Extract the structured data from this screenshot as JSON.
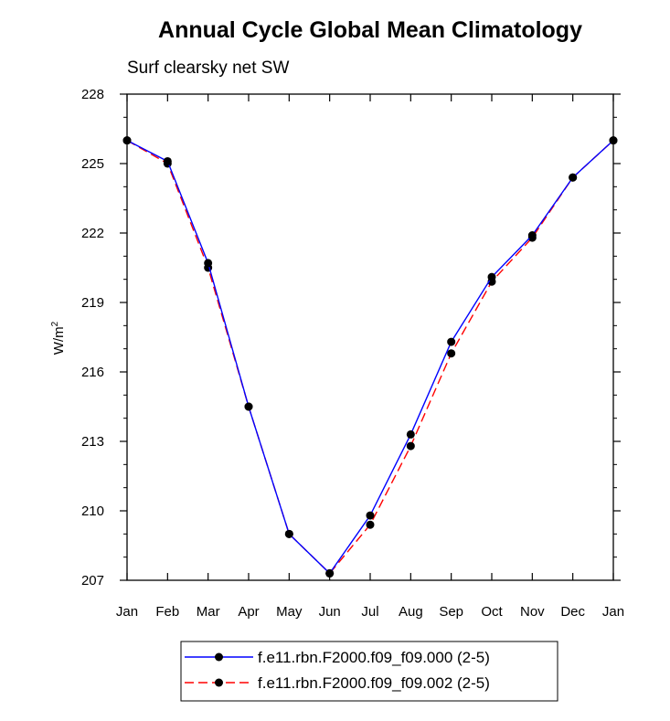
{
  "chart_data": {
    "type": "line",
    "title": "Annual Cycle Global Mean Climatology",
    "subtitle": "Surf clearsky net SW",
    "ylabel": "W/m",
    "ylabel_superscript": "2",
    "xlabel": "",
    "categories": [
      "Jan",
      "Feb",
      "Mar",
      "Apr",
      "May",
      "Jun",
      "Jul",
      "Aug",
      "Sep",
      "Oct",
      "Nov",
      "Dec",
      "Jan"
    ],
    "ylim": [
      207,
      228
    ],
    "yticks": [
      207,
      210,
      213,
      216,
      219,
      222,
      225,
      228
    ],
    "series": [
      {
        "name": "f.e11.rbn.F2000.f09_f09.000 (2-5)",
        "color": "#0000ff",
        "dash": "solid",
        "values": [
          226.0,
          225.1,
          220.7,
          214.5,
          209.0,
          207.3,
          209.8,
          213.3,
          217.3,
          220.1,
          221.9,
          224.4,
          226.0
        ]
      },
      {
        "name": "f.e11.rbn.F2000.f09_f09.002 (2-5)",
        "color": "#ff0000",
        "dash": "dashed",
        "values": [
          226.0,
          225.0,
          220.5,
          214.5,
          209.0,
          207.3,
          209.4,
          212.8,
          216.8,
          219.9,
          221.8,
          224.4,
          226.0
        ]
      }
    ],
    "legend_position": "bottom-center",
    "grid": false
  }
}
